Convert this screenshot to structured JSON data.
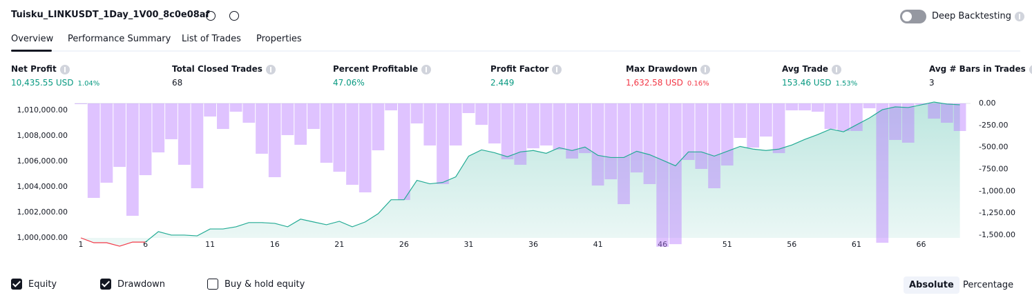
{
  "header": {
    "title": "Tuisku_LINKUSDT_1Day_1V00_8c0e08af",
    "toggle_label": "Deep Backtesting",
    "toggle_on": false
  },
  "tabs": [
    "Overview",
    "Performance Summary",
    "List of Trades",
    "Properties"
  ],
  "active_tab": 0,
  "metrics": [
    {
      "label": "Net Profit",
      "value": "10,435.55 USD",
      "percent": "1.04%",
      "tone": "positive"
    },
    {
      "label": "Total Closed Trades",
      "value": "68",
      "tone": "neutral"
    },
    {
      "label": "Percent Profitable",
      "value": "47.06%",
      "tone": "positive"
    },
    {
      "label": "Profit Factor",
      "value": "2.449",
      "tone": "positive"
    },
    {
      "label": "Max Drawdown",
      "value": "1,632.58 USD",
      "percent": "0.16%",
      "tone": "negative"
    },
    {
      "label": "Avg Trade",
      "value": "153.46 USD",
      "percent": "1.53%",
      "tone": "positive"
    },
    {
      "label": "Avg # Bars in Trades",
      "value": "3",
      "tone": "neutral"
    }
  ],
  "chart_data": {
    "type": "combo",
    "x": [
      1,
      2,
      3,
      4,
      5,
      6,
      7,
      8,
      9,
      10,
      11,
      12,
      13,
      14,
      15,
      16,
      17,
      18,
      19,
      20,
      21,
      22,
      23,
      24,
      25,
      26,
      27,
      28,
      29,
      30,
      31,
      32,
      33,
      34,
      35,
      36,
      37,
      38,
      39,
      40,
      41,
      42,
      43,
      44,
      45,
      46,
      47,
      48,
      49,
      50,
      51,
      52,
      53,
      54,
      55,
      56,
      57,
      58,
      59,
      60,
      61,
      62,
      63,
      64,
      65,
      66,
      67,
      68,
      69
    ],
    "series": [
      {
        "name": "Equity",
        "color": "#22ab94",
        "loss_color": "#f23645",
        "visible": true,
        "values": [
          1000000,
          999620,
          999620,
          999350,
          999670,
          999670,
          1000490,
          1000220,
          1000220,
          1000160,
          1000700,
          1000700,
          1000870,
          1001200,
          1001200,
          1001140,
          1000870,
          1001470,
          1001250,
          1001030,
          1001300,
          1000870,
          1001250,
          1001900,
          1002990,
          1002990,
          1004510,
          1004240,
          1004350,
          1004780,
          1006410,
          1006900,
          1006680,
          1006360,
          1006740,
          1006850,
          1006630,
          1007070,
          1006850,
          1007120,
          1006470,
          1006300,
          1006300,
          1006790,
          1006520,
          1006090,
          1005650,
          1006740,
          1006740,
          1006410,
          1006790,
          1007170,
          1006960,
          1006850,
          1006960,
          1007280,
          1007720,
          1008100,
          1008530,
          1008320,
          1008860,
          1009400,
          1010050,
          1010270,
          1010220,
          1010430,
          1010650,
          1010490,
          1010435.55
        ]
      },
      {
        "name": "Drawdown",
        "color": "#b87aff",
        "axis": "y2",
        "visible": true,
        "values": [
          0,
          -1076,
          -903,
          -723,
          -1280,
          -817,
          -558,
          -408,
          -699,
          -966,
          -149,
          -291,
          -94,
          -220,
          -573,
          -840,
          -361,
          -471,
          -291,
          -676,
          -778,
          -927,
          -1013,
          -534,
          -79,
          -1100,
          -228,
          -479,
          -919,
          -479,
          -110,
          -244,
          -456,
          -636,
          -699,
          -511,
          -479,
          -526,
          -628,
          -566,
          -935,
          -864,
          -1147,
          -786,
          -919,
          -1632.58,
          -1603,
          -644,
          -746,
          -966,
          -707,
          -393,
          -503,
          -377,
          -566,
          -79,
          -79,
          -94,
          -291,
          -314,
          -314,
          -55,
          -1587,
          -416,
          -447,
          -16,
          -173,
          -220,
          -314
        ]
      }
    ],
    "xlim": [
      1,
      69
    ],
    "xticks": [
      1,
      6,
      11,
      16,
      21,
      26,
      31,
      36,
      41,
      46,
      51,
      56,
      61,
      66
    ],
    "ylim": [
      1000000,
      1010000
    ],
    "yticks": [
      {
        "value": 1000000,
        "label": "1,000,000.00"
      },
      {
        "value": 1002000,
        "label": "1,002,000.00"
      },
      {
        "value": 1004000,
        "label": "1,004,000.00"
      },
      {
        "value": 1006000,
        "label": "1,006,000.00"
      },
      {
        "value": 1008000,
        "label": "1,008,000.00"
      },
      {
        "value": 1010000,
        "label": "1,010,000.00"
      }
    ],
    "y2lim": [
      -1500,
      0
    ],
    "y2ticks": [
      {
        "value": 0,
        "label": "0.00"
      },
      {
        "value": -250,
        "label": "-250.00"
      },
      {
        "value": -500,
        "label": "-500.00"
      },
      {
        "value": -750,
        "label": "-750.00"
      },
      {
        "value": -1000,
        "label": "-1,000.00"
      },
      {
        "value": -1250,
        "label": "-1,250.00"
      },
      {
        "value": -1500,
        "label": "-1,500.00"
      }
    ],
    "extra_legend": {
      "name": "Buy & hold equity",
      "visible": false
    }
  },
  "view_buttons": [
    "Absolute",
    "Percentage"
  ],
  "active_view": 0
}
